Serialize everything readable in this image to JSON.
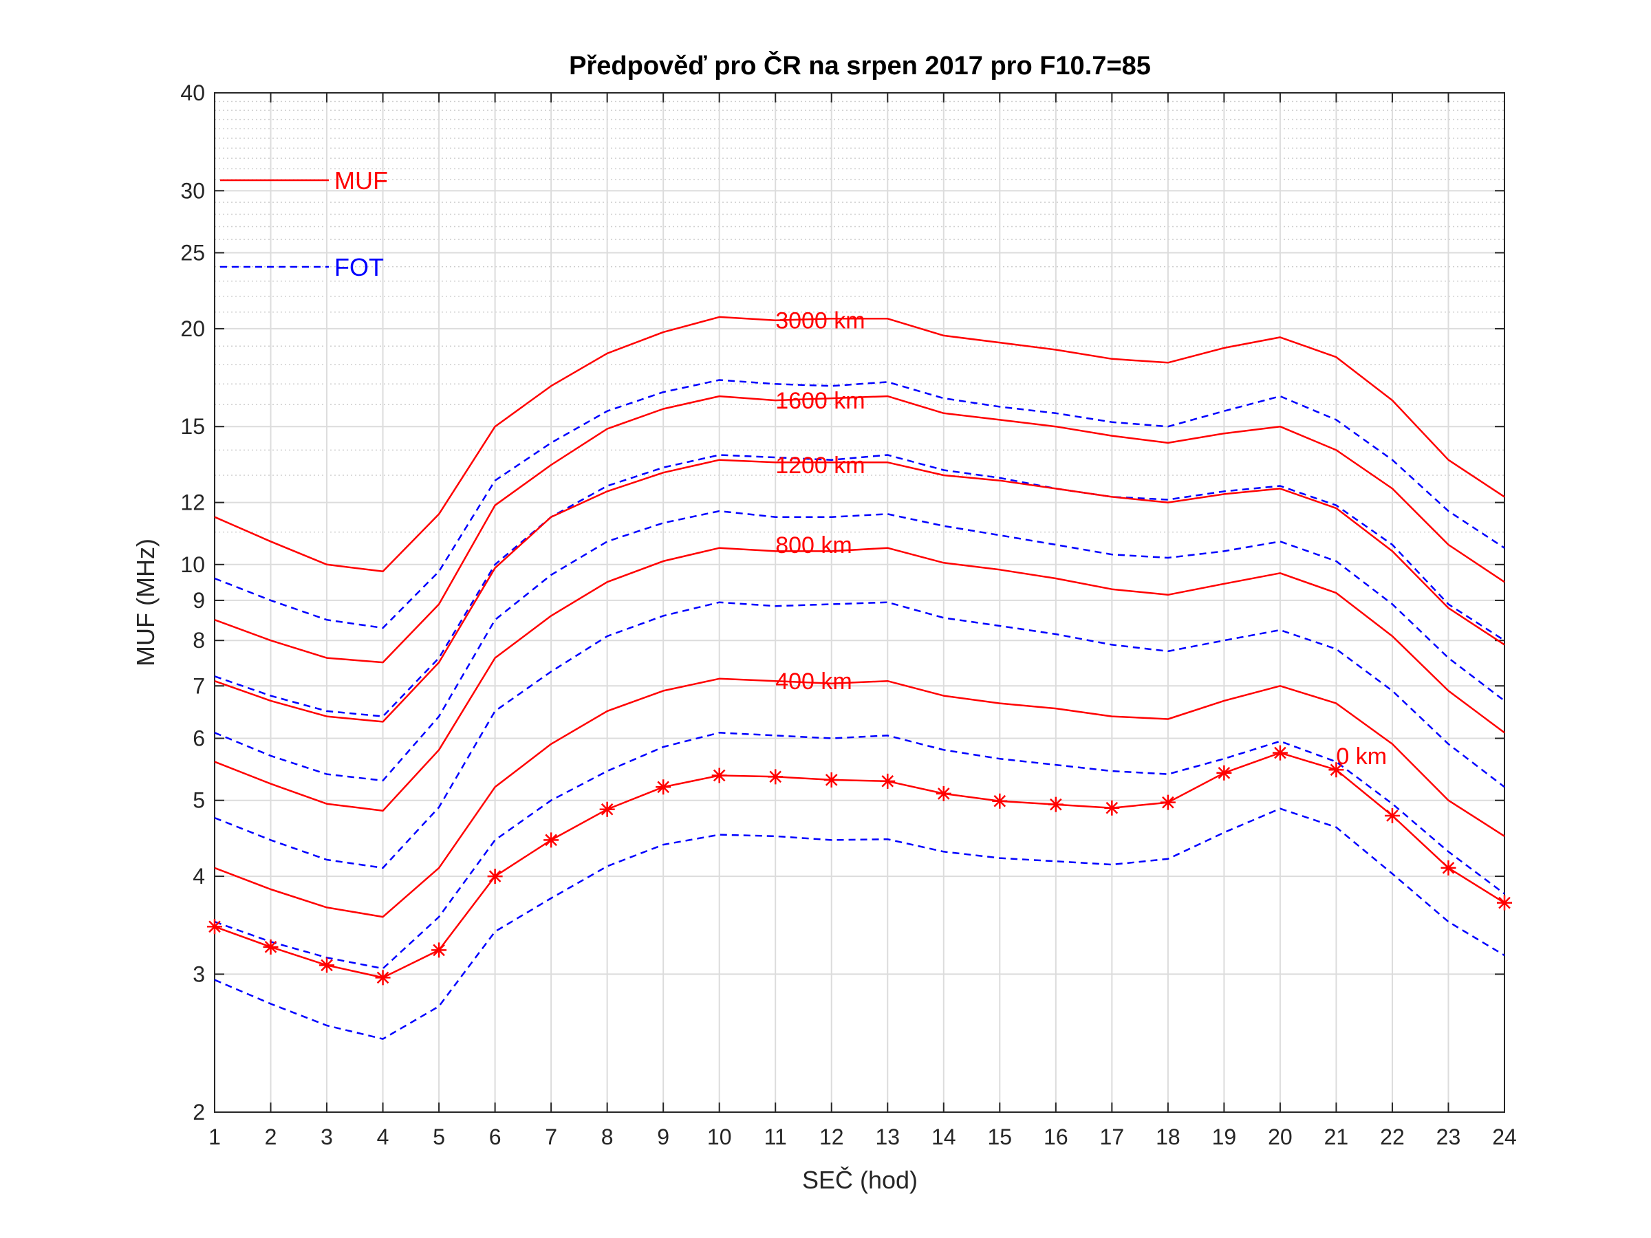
{
  "chart_data": {
    "type": "line",
    "title": "Předpověď pro ČR na srpen 2017 pro F10.7=85",
    "xlabel": "SEČ (hod)",
    "ylabel": "MUF (MHz)",
    "yscale": "log",
    "xlim": [
      1,
      24
    ],
    "ylim": [
      2,
      40
    ],
    "grid": true,
    "legend_position": "top-left",
    "x": [
      1,
      2,
      3,
      4,
      5,
      6,
      7,
      8,
      9,
      10,
      11,
      12,
      13,
      14,
      15,
      16,
      17,
      18,
      19,
      20,
      21,
      22,
      23,
      24
    ],
    "x_ticks": [
      "1",
      "2",
      "3",
      "4",
      "5",
      "6",
      "7",
      "8",
      "9",
      "10",
      "11",
      "12",
      "13",
      "14",
      "15",
      "16",
      "17",
      "18",
      "19",
      "20",
      "21",
      "22",
      "23",
      "24"
    ],
    "y_ticks": [
      {
        "value": 2,
        "label": "2"
      },
      {
        "value": 3,
        "label": "3"
      },
      {
        "value": 4,
        "label": "4"
      },
      {
        "value": 5,
        "label": "5"
      },
      {
        "value": 6,
        "label": "6"
      },
      {
        "value": 7,
        "label": "7"
      },
      {
        "value": 8,
        "label": "8"
      },
      {
        "value": 9,
        "label": "9"
      },
      {
        "value": 10,
        "label": "10"
      },
      {
        "value": 12,
        "label": "12"
      },
      {
        "value": 15,
        "label": "15"
      },
      {
        "value": 20,
        "label": "20"
      },
      {
        "value": 25,
        "label": "25"
      },
      {
        "value": 30,
        "label": "30"
      },
      {
        "value": 40,
        "label": "40"
      }
    ],
    "legend": [
      {
        "label": "MUF",
        "color": "#ff0000",
        "style": "solid"
      },
      {
        "label": "FOT",
        "color": "#0000ff",
        "style": "dashed"
      }
    ],
    "series": [
      {
        "kind": "MUF",
        "distance": "3000 km",
        "label_x": 11,
        "label_y": 20.5,
        "values": [
          11.5,
          10.7,
          10.0,
          9.8,
          11.6,
          15.0,
          16.9,
          18.6,
          19.8,
          20.7,
          20.5,
          20.6,
          20.6,
          19.6,
          19.2,
          18.8,
          18.3,
          18.1,
          18.9,
          19.5,
          18.4,
          16.2,
          13.6,
          12.2
        ]
      },
      {
        "kind": "FOT",
        "distance": "3000 km",
        "values": [
          9.6,
          9.0,
          8.5,
          8.3,
          9.8,
          12.8,
          14.3,
          15.7,
          16.6,
          17.2,
          17.0,
          16.9,
          17.1,
          16.3,
          15.9,
          15.6,
          15.2,
          15.0,
          15.7,
          16.4,
          15.3,
          13.6,
          11.7,
          10.5
        ]
      },
      {
        "kind": "MUF",
        "distance": "1600 km",
        "label_x": 11,
        "label_y": 16.2,
        "values": [
          8.5,
          8.0,
          7.6,
          7.5,
          8.9,
          11.9,
          13.4,
          14.9,
          15.8,
          16.4,
          16.2,
          16.3,
          16.4,
          15.6,
          15.3,
          15.0,
          14.6,
          14.3,
          14.7,
          15.0,
          14.0,
          12.5,
          10.6,
          9.5
        ]
      },
      {
        "kind": "FOT",
        "distance": "1600 km",
        "values": [
          7.2,
          6.8,
          6.5,
          6.4,
          7.6,
          10.0,
          11.5,
          12.6,
          13.3,
          13.8,
          13.7,
          13.6,
          13.8,
          13.2,
          12.9,
          12.5,
          12.2,
          12.1,
          12.4,
          12.6,
          11.9,
          10.6,
          8.9,
          8.0
        ]
      },
      {
        "kind": "MUF",
        "distance": "1200 km",
        "label_x": 11,
        "label_y": 13.4,
        "values": [
          7.1,
          6.7,
          6.4,
          6.3,
          7.5,
          9.9,
          11.5,
          12.4,
          13.1,
          13.6,
          13.5,
          13.5,
          13.5,
          13.0,
          12.8,
          12.5,
          12.2,
          12.0,
          12.3,
          12.5,
          11.8,
          10.4,
          8.8,
          7.9
        ]
      },
      {
        "kind": "FOT",
        "distance": "1200 km",
        "values": [
          6.1,
          5.7,
          5.4,
          5.3,
          6.4,
          8.5,
          9.7,
          10.7,
          11.3,
          11.7,
          11.5,
          11.5,
          11.6,
          11.2,
          10.9,
          10.6,
          10.3,
          10.2,
          10.4,
          10.7,
          10.1,
          8.9,
          7.6,
          6.7
        ]
      },
      {
        "kind": "MUF",
        "distance": "800 km",
        "label_x": 11,
        "label_y": 10.6,
        "values": [
          5.6,
          5.25,
          4.95,
          4.85,
          5.8,
          7.6,
          8.6,
          9.5,
          10.1,
          10.5,
          10.4,
          10.4,
          10.5,
          10.05,
          9.85,
          9.6,
          9.3,
          9.15,
          9.45,
          9.75,
          9.2,
          8.1,
          6.9,
          6.1
        ]
      },
      {
        "kind": "FOT",
        "distance": "800 km",
        "values": [
          4.75,
          4.45,
          4.2,
          4.1,
          4.9,
          6.5,
          7.3,
          8.1,
          8.6,
          8.95,
          8.85,
          8.9,
          8.95,
          8.55,
          8.35,
          8.15,
          7.9,
          7.75,
          8.0,
          8.25,
          7.8,
          6.9,
          5.9,
          5.2
        ]
      },
      {
        "kind": "MUF",
        "distance": "400 km",
        "label_x": 11,
        "label_y": 7.1,
        "values": [
          4.1,
          3.85,
          3.65,
          3.55,
          4.1,
          5.2,
          5.9,
          6.5,
          6.9,
          7.15,
          7.1,
          7.05,
          7.1,
          6.8,
          6.65,
          6.55,
          6.4,
          6.35,
          6.7,
          7.0,
          6.65,
          5.9,
          5.0,
          4.5
        ]
      },
      {
        "kind": "FOT",
        "distance": "400 km",
        "values": [
          3.5,
          3.3,
          3.15,
          3.05,
          3.55,
          4.45,
          5.0,
          5.45,
          5.85,
          6.1,
          6.05,
          6.0,
          6.05,
          5.8,
          5.65,
          5.55,
          5.45,
          5.4,
          5.65,
          5.95,
          5.6,
          4.95,
          4.3,
          3.8
        ]
      },
      {
        "kind": "MUF",
        "distance": "0 km",
        "markers": true,
        "label_x": 21,
        "label_y": 5.7,
        "values": [
          3.45,
          3.25,
          3.08,
          2.97,
          3.22,
          4.0,
          4.45,
          4.87,
          5.2,
          5.38,
          5.36,
          5.31,
          5.29,
          5.1,
          4.99,
          4.94,
          4.89,
          4.97,
          5.42,
          5.75,
          5.47,
          4.78,
          4.1,
          3.7
        ]
      },
      {
        "kind": "FOT",
        "distance": "0 km",
        "values": [
          2.95,
          2.75,
          2.58,
          2.48,
          2.73,
          3.4,
          3.75,
          4.12,
          4.39,
          4.52,
          4.5,
          4.45,
          4.46,
          4.3,
          4.22,
          4.18,
          4.14,
          4.21,
          4.55,
          4.88,
          4.62,
          4.03,
          3.5,
          3.17
        ]
      }
    ]
  }
}
